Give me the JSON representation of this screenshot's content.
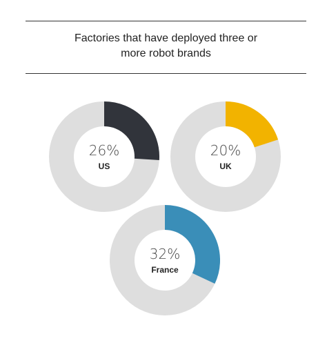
{
  "title": {
    "line1": "Factories that have deployed three or",
    "line2": "more robot brands"
  },
  "colors": {
    "track": "#dedede",
    "us": "#31343b",
    "uk": "#f2b300",
    "france": "#3a8eb8"
  },
  "chart_data": {
    "type": "pie",
    "title": "Factories that have deployed three or more robot brands",
    "series": [
      {
        "name": "US",
        "value": 26,
        "label": "26%",
        "color": "#31343b"
      },
      {
        "name": "UK",
        "value": 20,
        "label": "20%",
        "color": "#f2b300"
      },
      {
        "name": "France",
        "value": 32,
        "label": "32%",
        "color": "#3a8eb8"
      }
    ]
  }
}
